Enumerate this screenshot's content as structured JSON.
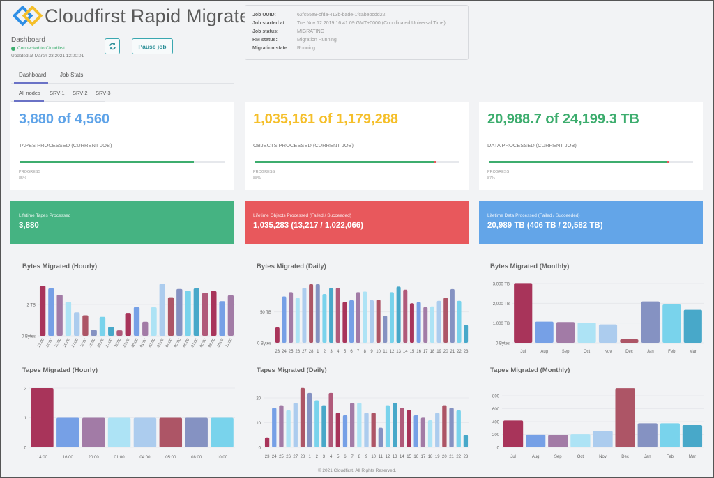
{
  "header": {
    "app_title": "Cloudfirst Rapid Migrate",
    "page_label": "Dashboard",
    "connection_status": "Connected to Cloudfirst",
    "updated_at": "Updated at March 23 2021 12:00:01",
    "refresh_icon": "refresh-icon",
    "pause_label": "Pause job"
  },
  "job": [
    {
      "label": "Job UUID:",
      "value": "62fc55a8-cfda-413b-bade-1fcabebcdd22"
    },
    {
      "label": "Job started at:",
      "value": "Tue Nov 12 2019 16:41:09 GMT+0000 (Coordinated Universal Time)"
    },
    {
      "label": "Job status:",
      "value": "MIGRATING"
    },
    {
      "label": "RM status:",
      "value": "Migration Running"
    },
    {
      "label": "Migration state:",
      "value": "Running"
    }
  ],
  "tabs": [
    "Dashboard",
    "Job Stats"
  ],
  "node_tabs": [
    "All nodes",
    "SRV-1",
    "SRV-2",
    "SRV-3"
  ],
  "cards": [
    {
      "value": "3,880 of 4,560",
      "caption": "TAPES PROCESSED (CURRENT JOB)",
      "progress_label": "PROGRESS",
      "progress_text": "85%",
      "progress": 85,
      "failed": 0,
      "color": "#5ea3e8"
    },
    {
      "value": "1,035,161 of 1,179,288",
      "caption": "OBJECTS PROCESSED (CURRENT JOB)",
      "progress_label": "PROGRESS",
      "progress_text": "88%",
      "progress": 88,
      "failed": 1,
      "color": "#f5bf2a"
    },
    {
      "value": "20,988.7 of 24,199.3 TB",
      "caption": "DATA PROCESSED (CURRENT JOB)",
      "progress_label": "PROGRESS",
      "progress_text": "87%",
      "progress": 87,
      "failed": 1,
      "color": "#3dad6e"
    }
  ],
  "lifetime": [
    {
      "title": "Lifetime Tapes Processed",
      "value": "3,880",
      "color": "#45b382"
    },
    {
      "title": "Lifetime Objects Processed (Failed / Succeeded)",
      "value": "1,035,283 (13,217 / 1,022,066)",
      "color": "#e8585c"
    },
    {
      "title": "Lifetime Data Processed (Failed / Succeeded)",
      "value": "20,989 TB (406 TB / 20,582 TB)",
      "color": "#63a5e8"
    }
  ],
  "palette": [
    "#a8345a",
    "#76a0e6",
    "#a27ba6",
    "#ade3f5",
    "#acccee",
    "#ad5566",
    "#8592c2",
    "#79d3ec",
    "#48a8c9",
    "#b05a7a"
  ],
  "chart_data": [
    {
      "type": "bar",
      "title": "Bytes Migrated (Hourly)",
      "ylim": [
        0,
        3.5
      ],
      "yticks": [
        {
          "v": 0,
          "label": "0 Bytes"
        },
        {
          "v": 2,
          "label": "2 TB"
        }
      ],
      "unit": "TB",
      "categories": [
        "13:00",
        "14:00",
        "15:00",
        "16:00",
        "17:00",
        "18:00",
        "19:00",
        "20:00",
        "21:00",
        "22:00",
        "23:00",
        "00:00",
        "01:00",
        "02:00",
        "03:00",
        "04:00",
        "05:00",
        "06:00",
        "07:00",
        "08:00",
        "09:00",
        "10:00",
        "11:00"
      ],
      "values": [
        3.2,
        3.03,
        2.62,
        2.18,
        1.5,
        1.31,
        0.37,
        1.21,
        0.57,
        0.35,
        1.46,
        1.84,
        0.9,
        1.82,
        3.32,
        2.46,
        2.99,
        2.87,
        3.03,
        2.74,
        2.85,
        2.21,
        2.59
      ]
    },
    {
      "type": "bar",
      "title": "Bytes Migrated (Daily)",
      "ylim": [
        0,
        100
      ],
      "yticks": [
        {
          "v": 0,
          "label": "0 Bytes"
        },
        {
          "v": 50,
          "label": "50 TB"
        }
      ],
      "unit": "TB",
      "categories": [
        "23",
        "24",
        "25",
        "26",
        "27",
        "28",
        "1",
        "2",
        "3",
        "4",
        "5",
        "6",
        "7",
        "8",
        "9",
        "10",
        "11",
        "12",
        "13",
        "14",
        "15",
        "16",
        "17",
        "18",
        "19",
        "20",
        "21",
        "22",
        "23"
      ],
      "values": [
        25,
        75,
        82,
        73,
        89,
        95,
        95,
        79,
        89,
        89,
        66,
        69,
        82,
        83,
        69,
        70,
        44,
        82,
        91,
        86,
        64,
        66,
        58,
        59,
        68,
        73,
        87,
        68,
        29
      ]
    },
    {
      "type": "bar",
      "title": "Bytes Migrated (Monthly)",
      "ylim": [
        0,
        3000
      ],
      "yticks": [
        {
          "v": 0,
          "label": "0 Bytes"
        },
        {
          "v": 1000,
          "label": "1,000 TB"
        },
        {
          "v": 2000,
          "label": "2,000 TB"
        },
        {
          "v": 3000,
          "label": "3,000 TB"
        }
      ],
      "unit": "TB",
      "categories": [
        "Jul",
        "Aug",
        "Sep",
        "Oct",
        "Nov",
        "Dec",
        "Jan",
        "Feb",
        "Mar"
      ],
      "values": [
        3020,
        1070,
        1050,
        1025,
        930,
        175,
        2095,
        1940,
        1670
      ]
    },
    {
      "type": "bar",
      "title": "Tapes Migrated (Hourly)",
      "ylim": [
        0,
        2
      ],
      "yticks": [
        {
          "v": 0,
          "label": "0"
        },
        {
          "v": 1,
          "label": "1"
        },
        {
          "v": 2,
          "label": "2"
        }
      ],
      "categories": [
        "14:00",
        "16:00",
        "20:00",
        "01:00",
        "04:00",
        "05:00",
        "08:00",
        "10:00"
      ],
      "values": [
        2,
        1,
        1,
        1,
        1,
        1,
        1,
        1
      ]
    },
    {
      "type": "bar",
      "title": "Tapes Migrated (Daily)",
      "ylim": [
        0,
        24
      ],
      "yticks": [
        {
          "v": 0,
          "label": "0"
        },
        {
          "v": 10,
          "label": "10"
        },
        {
          "v": 20,
          "label": "20"
        }
      ],
      "categories": [
        "23",
        "24",
        "25",
        "26",
        "27",
        "28",
        "1",
        "2",
        "3",
        "4",
        "5",
        "6",
        "7",
        "8",
        "9",
        "10",
        "11",
        "12",
        "13",
        "14",
        "15",
        "16",
        "17",
        "18",
        "19",
        "20",
        "21",
        "22",
        "23"
      ],
      "values": [
        4,
        16,
        17,
        15,
        18,
        24,
        22,
        19,
        17,
        22,
        14,
        13,
        18,
        18,
        14,
        14,
        8,
        17,
        18,
        16,
        15,
        13,
        12,
        11,
        14,
        17,
        16,
        15,
        5
      ]
    },
    {
      "type": "bar",
      "title": "Tapes Migrated (Monthly)",
      "ylim": [
        0,
        1000
      ],
      "yticks": [
        {
          "v": 0,
          "label": "0"
        },
        {
          "v": 200,
          "label": "200"
        },
        {
          "v": 400,
          "label": "400"
        },
        {
          "v": 600,
          "label": "600"
        },
        {
          "v": 800,
          "label": "800"
        }
      ],
      "categories": [
        "Jul",
        "Aug",
        "Sep",
        "Oct",
        "Nov",
        "Dec",
        "Jan",
        "Feb",
        "Mar"
      ],
      "values": [
        418,
        196,
        189,
        204,
        257,
        918,
        375,
        375,
        346
      ]
    }
  ],
  "footer": "© 2021 Cloudfirst. All Rights Reserved."
}
